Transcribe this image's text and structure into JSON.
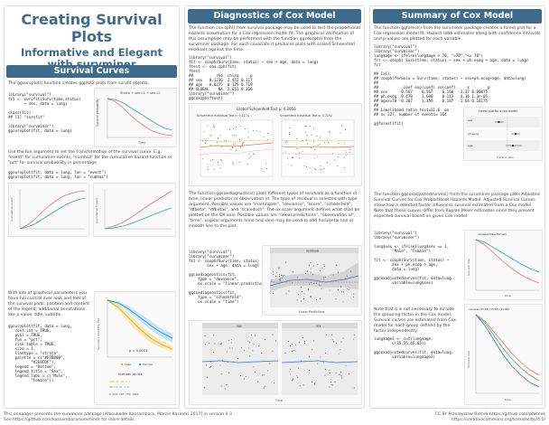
{
  "title": {
    "main": "Creating Survival Plots",
    "sub1": "Informative and Elegant",
    "sub2": "with survminer"
  },
  "sections": {
    "curves": "Survival Curves",
    "diagnostics": "Diagnostics of Cox Model",
    "summary": "Summary of Cox Model"
  },
  "col1": {
    "intro": "The ggsurvplot() function creates ggplot2 plots from survfit objects.",
    "code1": "library(\"survival\")\nfit <- survfit(Surv(time,status)\n       ~ sex, data = lung)\n\nclass(fit)\n## [1] \"survfit\"\n\nlibrary(\"survminer\")\nggsurvplot(fit, data = lung)",
    "fun_text": "Use the fun argument to set the transformation of the survival curve. E.g. \"event\" for cumulative events, \"cumhaz\" for the cumulative hazard function or \"pct\" for survival probability in percentage.",
    "code2": "ggsurvplot(fit, data = lung, fun = \"event\")\nggsurvplot(fit, data = lung, fun = \"cumhaz\")",
    "custom_text": "With lots of graphical parameters you have full control over look and feel of the survival plots; position and content of the legend; additional annotations like p-value, title, subtitle.",
    "code3": "ggsurvplot(fit, data = lung,\n   conf.int = TRUE,\n   pval = TRUE,\n   fun = \"pct\",\n   risk.table = TRUE,\n   size = 1,\n   linetype = \"strata\",\n   palette = c(\"#E7B800\",\n          \"#2E9FDF\"),\n   legend = \"bottom\",\n   legend.title = \"Sex\",\n   legend.labs = c(\"Male\",\n          \"Female\"))",
    "plot1_legend": "Strata  +  sex=1  +  sex=2",
    "plot1_ylabel": "Survival probability",
    "plot1_xlabel": "Time",
    "plot2_ylabel": "Cumulative event",
    "plot3_ylabel": "Cumulative hazard",
    "plot4_ylabel": "Survival probability (%)",
    "pval": "p = 0.0013",
    "risk_title": "Number at risk",
    "legend_male": "Male",
    "legend_female": "Female"
  },
  "col2": {
    "intro": "The function cox.zph() from survival package may be used to test the proportional hazards assumption for a Cox regression model fit. The graphical verification of this assumption may be performed with the function ggcoxzph() from the survminer package. For each covariate it produces plots with scaled Schoenfeld residuals against the time.",
    "code1": "library(\"survival\")\nfit <- coxph(Surv(time, status) ~ sex + age, data = lung)\nftest <- cox.zph(fit)\nftest\n##          rho  chisq     p\n## sex   0.1236  2.452 0.117\n## age  -0.0275  0.129 0.719\n## GLOBAL    NA  2.651 0.266\nlibrary(\"survminer\")\nggcoxzph(ftest)",
    "zph_title": "Global Schoenfeld Test p: 0.2656",
    "zph_left": "Schoenfeld Individual Test p: 0.1174",
    "zph_right": "Schoenfeld Individual Test p: 0.7192",
    "diag_text": "The function ggcoxdiagnostics() plots different types of residuals as a function of time, linear predictor or observation id. The type of residual is selected with type argument. Possible values are \"martingale\", \"deviance\", \"score\", \"schoenfeld\", \"dfbeta\", \"dfbetas\", and \"scaledsch\". The ox.scale argument defines what shall be plotted on the OX axis. Possible values are \"linear.predictions\", \"observation.id\", \"time\". Logical arguments hline and sline may be used to add horizontal line or smooth line to the plot.",
    "code2": "library(\"survival\")\nlibrary(\"survminer\")\nfit <- coxph(Surv(time, status) ~\n        sex + age, data = lung)\n\nggcoxdiagnostics(fit,\n    type = \"deviance\",\n    ox.scale = \"linear.predictions\")\n\nggcoxdiagnostics(fit,\n    type = \"schoenfeld\",\n    ox.scale = \"time\")",
    "resid_title": "residuals",
    "resid_xlabel": "Linear Predictions",
    "facet_age": "age",
    "facet_sex": "sex",
    "schoen_xlabel": "Time"
  },
  "col3": {
    "intro": "The function ggforest() from the survminer package creates a forest plot for a Cox regression model fit. Hazard ratio estimates along with confidence intervals and p-values are plotted for each variable.",
    "code1": "library(\"survival\")\nlibrary(\"survminer\")\nlung$age <- ifelse(lung$age > 70, \">70\",\"<= 70\")\nfit <- coxph( Surv(time, status) ~ sex + ph.ecog + age, data = lung)\nfit\n\n## Call:\n## coxph(formula = Surv(time, status) ~ sex+ph.ecog+age, data=lung)\n##\n##           coef exp(coef) se(coef)     z        p\n## sex     -0.567    0.567    0.168  -3.37 0.00075\n## ph.ecog  0.470    1.600    0.113   4.16 1.3e-05\n## age>=70  0.307    1.359    0.187   1.64 0.10175\n##\n## Likelihood ratio test=31.6  on\n## n= 227, number of events= 164\n\nggforest(fit)",
    "forest_title": "Forest plot for a cox model",
    "forest_labels": [
      "sex",
      "ph.ecog",
      "age"
    ],
    "forest_xlabel": "Hazard ratio",
    "adj_text": "The function ggcoxadjustedcurves() from the survminer package plots Adjusted Survival Curves for Cox Proportional Hazards Model. Adjusted Survival Curves show how a selected factor influences survival estimated from a Cox model. Note that these curves differ from Kaplan Meier estimates since they present expected survival based on given Cox model.",
    "code2": "library(\"survival\")\nlibrary(\"survminer\")\n\nlung$sex <- ifelse(lung$sex == 1,\n        \"Male\", \"Female\")\n\nfit <- coxph(Surv(time, status) ~\n        sex + ph.ecog + age,\n        data = lung)\n\nggcoxadjustedcurves(fit, data=lung,\n        variable=lung$sex)",
    "adj_legend": "variable  Male  Female",
    "note_text": "Note that it is not necessary to include the grouping factor in the Cox model. Survival curves are estimated from Cox model for each group defined by the factor independently.",
    "code3": "lung$age3 <- cut(lung$age,\n        c(35,55,65,85))\n\nggcoxadjustedcurves(fit, data=lung,\n        variable=lung$age3)",
    "adj2_legend": "variable  (35,55]  (55,65]  (65,85]",
    "ylabel": "Survival rate",
    "xlabel": "time"
  },
  "footer": {
    "left1": "This onepager presents the survminer package [Alboukadel Kassambara, Marcin Kosinski 2017] in version 0.3.",
    "left2": "See https://github.com/kassambara/survminer for more details.",
    "right1": "CC BY Przemysław Biecek https://github.com/pbiecek",
    "right2": "https://creativecommons.org/licenses/by/4.0/"
  },
  "colors": {
    "header": "#3f6b8a",
    "male": "#e8735a",
    "female": "#33a5a8",
    "gold": "#E7B800",
    "blue": "#2E9FDF"
  }
}
